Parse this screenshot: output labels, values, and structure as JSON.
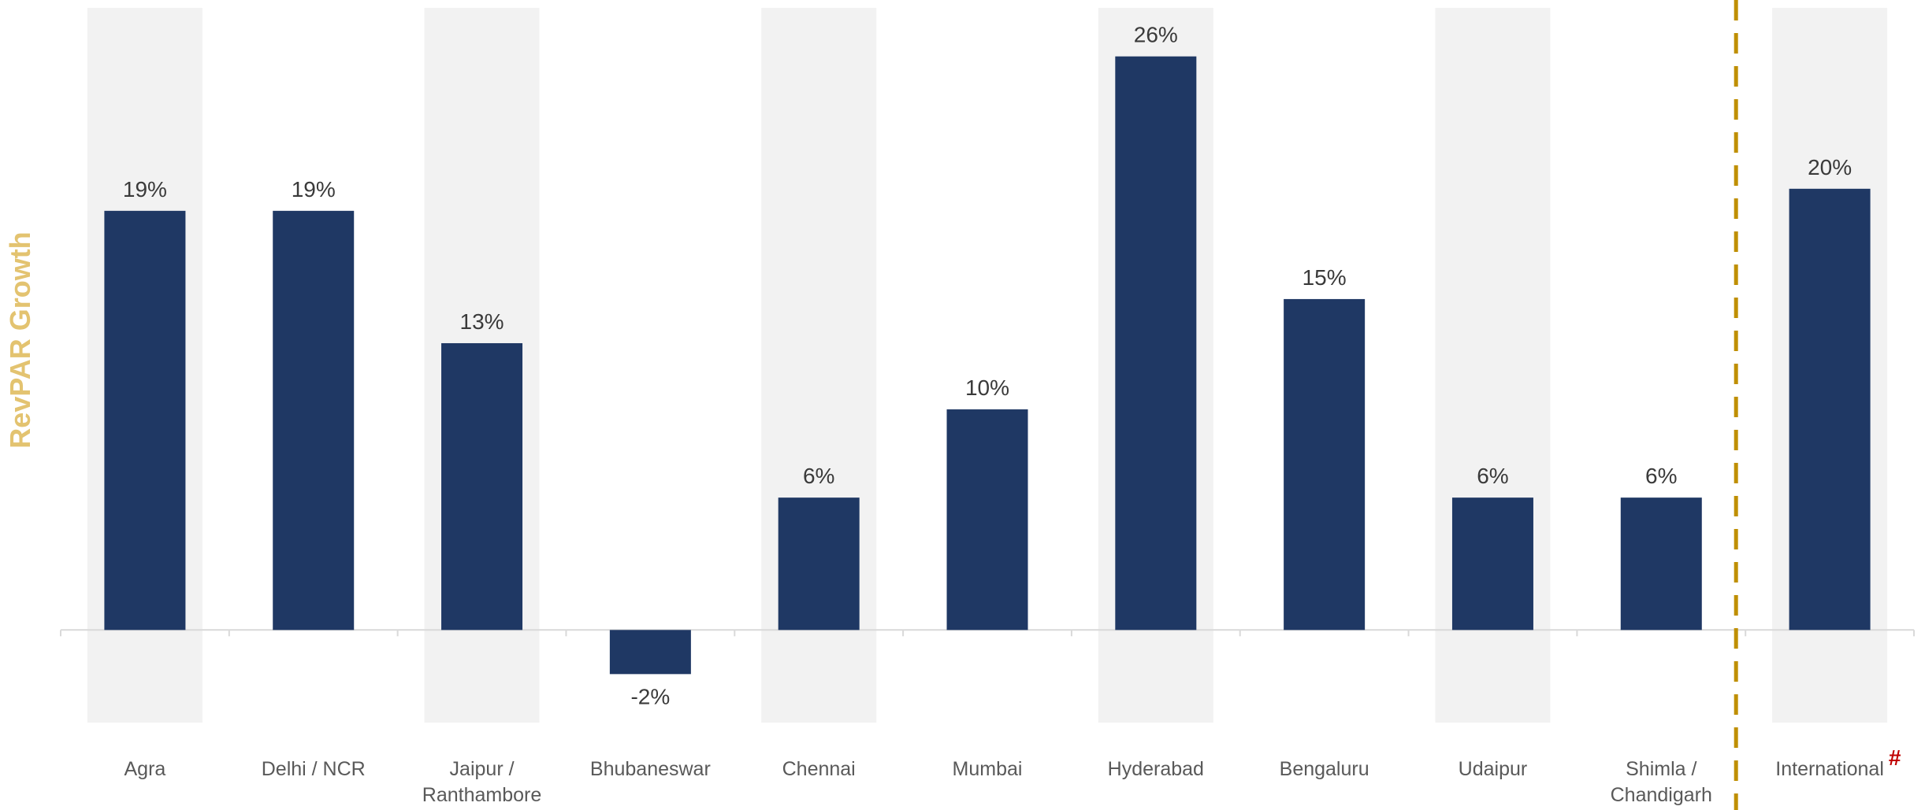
{
  "chart_data": {
    "type": "bar",
    "ylabel": "RevPAR Growth",
    "categories": [
      [
        "Agra"
      ],
      [
        "Delhi / NCR"
      ],
      [
        "Jaipur /",
        "Ranthambore"
      ],
      [
        "Bhubaneswar"
      ],
      [
        "Chennai"
      ],
      [
        "Mumbai"
      ],
      [
        "Hyderabad"
      ],
      [
        "Bengaluru"
      ],
      [
        "Udaipur"
      ],
      [
        "Shimla /",
        "Chandigarh"
      ],
      [
        "International"
      ]
    ],
    "values": [
      19,
      19,
      13,
      -2,
      6,
      10,
      26,
      15,
      6,
      6,
      20
    ],
    "value_labels": [
      "19%",
      "19%",
      "13%",
      "-2%",
      "6%",
      "10%",
      "26%",
      "15%",
      "6%",
      "6%",
      "20%"
    ],
    "footnote_marker": "#",
    "ylim": [
      -4.2,
      28.2
    ],
    "colors": {
      "bar": "#1f3864",
      "band": "#f2f2f2",
      "axis": "#d9d9d9",
      "divider": "#bf8f00",
      "ylabel": "#e3c370",
      "footnote": "#c00000"
    }
  }
}
